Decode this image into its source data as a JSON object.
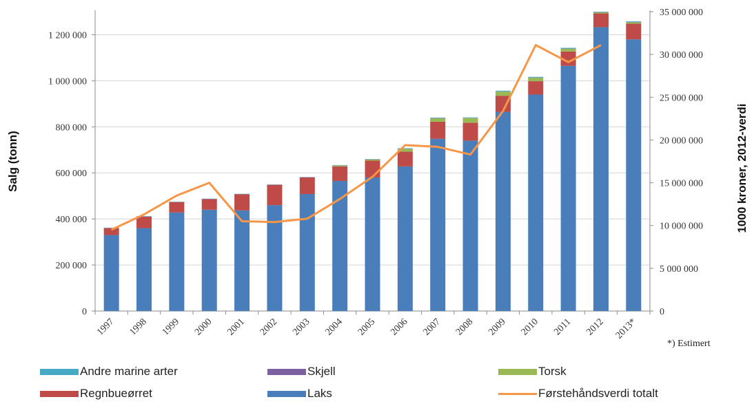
{
  "chart_data": {
    "type": "bar",
    "categories": [
      "1997",
      "1998",
      "1999",
      "2000",
      "2001",
      "2002",
      "2003",
      "2004",
      "2005",
      "2006",
      "2007",
      "2008",
      "2009",
      "2010",
      "2011",
      "2012",
      "2013*"
    ],
    "series": [
      {
        "name": "Laks",
        "color": "#4a7ebb",
        "values": [
          330000,
          360000,
          428000,
          440000,
          437000,
          460000,
          508000,
          565000,
          580000,
          628000,
          748000,
          740000,
          865000,
          940000,
          1065000,
          1233000,
          1180000
        ]
      },
      {
        "name": "Regnbueørret",
        "color": "#be4b48",
        "values": [
          30000,
          50000,
          45000,
          46000,
          70000,
          88000,
          72000,
          63000,
          73000,
          64000,
          74000,
          78000,
          70000,
          58000,
          62000,
          60000,
          68000
        ]
      },
      {
        "name": "Torsk",
        "color": "#98b954",
        "values": [
          0,
          0,
          0,
          0,
          0,
          0,
          0,
          4000,
          5000,
          12000,
          15000,
          20000,
          18000,
          15000,
          12000,
          4000,
          6000
        ]
      },
      {
        "name": "Skjell",
        "color": "#7d60a0",
        "values": [
          1000,
          1000,
          1000,
          1000,
          1000,
          1000,
          1000,
          1000,
          1000,
          1000,
          1000,
          1000,
          1000,
          1000,
          1000,
          1000,
          1000
        ]
      },
      {
        "name": "Andre marine arter",
        "color": "#46aac5",
        "values": [
          1000,
          1000,
          1000,
          1000,
          1000,
          1000,
          1000,
          1000,
          1000,
          2000,
          2000,
          2000,
          3000,
          3000,
          3000,
          2000,
          3000
        ]
      }
    ],
    "line": {
      "name": "Førstehåndsverdi totalt",
      "color": "#f79646",
      "axis": "right",
      "values": [
        9500000,
        11300000,
        13500000,
        15000000,
        10500000,
        10400000,
        10800000,
        13100000,
        15700000,
        19400000,
        19200000,
        18300000,
        23400000,
        31100000,
        29100000,
        31100000,
        null
      ]
    },
    "ylabel": "Salg (tonn)",
    "y2label": "1000 kroner, 2012-verdi",
    "ylim": [
      0,
      1300000
    ],
    "y2lim": [
      0,
      35000000
    ],
    "yticks": [
      "0",
      "200 000",
      "400 000",
      "600 000",
      "800 000",
      "1 000 000",
      "1 200 000"
    ],
    "yticks_values": [
      0,
      200000,
      400000,
      600000,
      800000,
      1000000,
      1200000
    ],
    "y2ticks": [
      "0",
      "5 000 000",
      "10 000 000",
      "15 000 000",
      "20 000 000",
      "25 000 000",
      "30 000 000",
      "35 000 000"
    ],
    "y2ticks_values": [
      0,
      5000000,
      10000000,
      15000000,
      20000000,
      25000000,
      30000000,
      35000000
    ],
    "grid": true,
    "legend": "bottom",
    "note": "*) Estimert"
  },
  "legend": {
    "items": [
      {
        "label": "Andre marine arter",
        "color": "#46aac5"
      },
      {
        "label": "Skjell",
        "color": "#7d60a0"
      },
      {
        "label": "Torsk",
        "color": "#98b954"
      },
      {
        "label": "Regnbueørret",
        "color": "#be4b48"
      },
      {
        "label": "Laks",
        "color": "#4a7ebb"
      },
      {
        "label": "Førstehåndsverdi totalt",
        "color": "#f79646"
      }
    ]
  }
}
